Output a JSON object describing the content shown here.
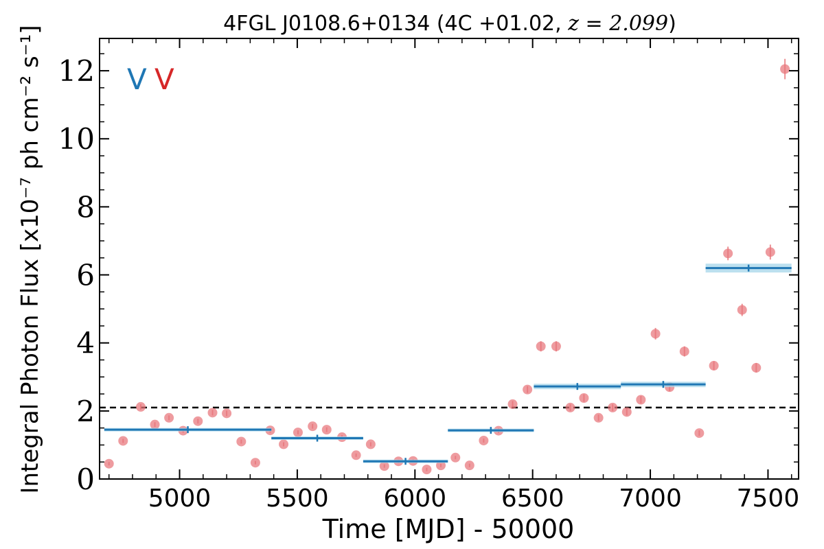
{
  "chart_data": {
    "type": "scatter",
    "title_main": "4FGL J0108.6+0134 (4C +01.02, ",
    "title_z": "z = 2.099",
    "title_close": ")",
    "xlabel": "Time [MJD] - 50000",
    "ylabel": "Integral Photon Flux [x10⁻⁷ ph cm⁻² s⁻¹]",
    "xlim": [
      4660,
      7630
    ],
    "ylim": [
      0,
      12.95
    ],
    "xticks": [
      5000,
      5500,
      6000,
      6500,
      7000,
      7500
    ],
    "yticks": [
      0,
      2,
      4,
      6,
      8,
      10,
      12
    ],
    "markers": [
      {
        "label": "V",
        "color": "#1f77b4"
      },
      {
        "label": "V",
        "color": "#d62728"
      }
    ],
    "dashed_line": {
      "y": 2.1,
      "color": "#000000"
    },
    "colors": {
      "points": "#e8757a",
      "bayesian_blocks": "#1f77b4",
      "block_band": "#a6d6ea"
    },
    "series": [
      {
        "type": "scatter",
        "x": [
          4700,
          4760,
          4835,
          4895,
          4955,
          5015,
          5078,
          5140,
          5200,
          5262,
          5322,
          5385,
          5442,
          5503,
          5565,
          5625,
          5690,
          5750,
          5812,
          5870,
          5930,
          5992,
          6050,
          6110,
          6172,
          6232,
          6292,
          6355,
          6415,
          6478,
          6535,
          6600,
          6660,
          6718,
          6780,
          6840,
          6900,
          6960,
          7022,
          7082,
          7145,
          7208,
          7270,
          7330,
          7390,
          7450,
          7510,
          7572
        ],
        "y": [
          0.45,
          1.12,
          2.12,
          1.6,
          1.8,
          1.42,
          1.7,
          1.95,
          1.93,
          1.1,
          0.48,
          1.43,
          1.02,
          1.37,
          1.55,
          1.45,
          1.23,
          0.7,
          1.02,
          0.38,
          0.52,
          0.53,
          0.28,
          0.4,
          0.63,
          0.4,
          1.13,
          1.42,
          2.2,
          2.63,
          3.9,
          3.9,
          2.1,
          2.38,
          1.8,
          2.1,
          1.97,
          2.33,
          4.27,
          2.7,
          3.75,
          1.35,
          3.33,
          6.63,
          4.97,
          3.27,
          6.67,
          12.05
        ],
        "yerr": [
          0.05,
          0.06,
          0.08,
          0.07,
          0.07,
          0.06,
          0.07,
          0.08,
          0.08,
          0.06,
          0.05,
          0.07,
          0.06,
          0.06,
          0.07,
          0.07,
          0.06,
          0.05,
          0.06,
          0.05,
          0.05,
          0.05,
          0.05,
          0.05,
          0.05,
          0.05,
          0.06,
          0.07,
          0.09,
          0.1,
          0.15,
          0.15,
          0.1,
          0.11,
          0.09,
          0.1,
          0.1,
          0.11,
          0.17,
          0.12,
          0.15,
          0.08,
          0.13,
          0.2,
          0.18,
          0.14,
          0.22,
          0.3
        ]
      },
      {
        "type": "blocks",
        "blocks": [
          {
            "x0": 4680,
            "x1": 5390,
            "y": 1.45,
            "err": 0.03
          },
          {
            "x0": 5390,
            "x1": 5780,
            "y": 1.2,
            "err": 0.04
          },
          {
            "x0": 5780,
            "x1": 6140,
            "y": 0.52,
            "err": 0.03
          },
          {
            "x0": 6140,
            "x1": 6505,
            "y": 1.43,
            "err": 0.05
          },
          {
            "x0": 6505,
            "x1": 6875,
            "y": 2.72,
            "err": 0.08
          },
          {
            "x0": 6875,
            "x1": 7235,
            "y": 2.78,
            "err": 0.08
          },
          {
            "x0": 7235,
            "x1": 7600,
            "y": 6.2,
            "err": 0.13
          }
        ]
      }
    ]
  }
}
